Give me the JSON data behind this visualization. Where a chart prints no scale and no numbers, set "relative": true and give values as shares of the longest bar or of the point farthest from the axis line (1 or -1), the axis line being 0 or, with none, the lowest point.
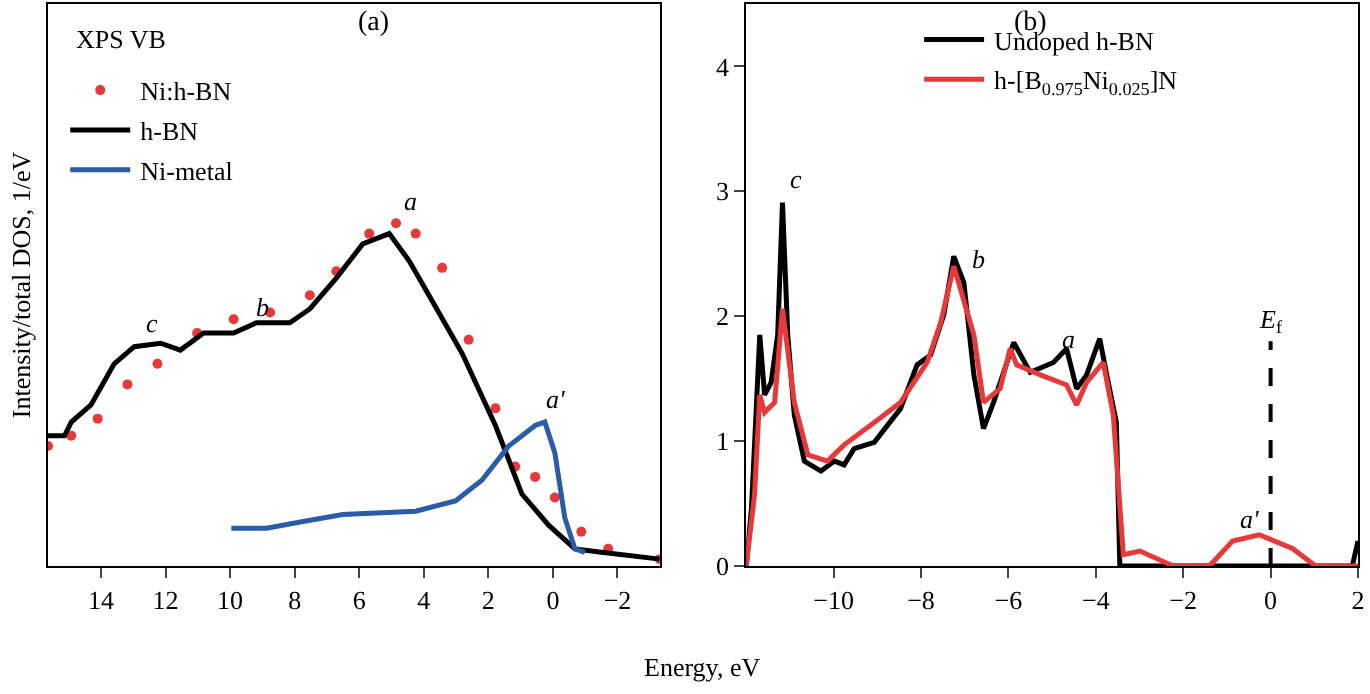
{
  "chart_data": [
    {
      "type": "line",
      "title": "(a)",
      "xlabel": "Energy, eV",
      "ylabel": "Intensity/total DOS, 1/eV",
      "relative": true,
      "xlim": [
        15.64,
        -3.31
      ],
      "xticks": [
        14,
        12,
        10,
        8,
        6,
        4,
        2,
        0,
        -2
      ],
      "legend": "top left",
      "series": [
        {
          "name": "Ni:h-BN",
          "type": "scatter",
          "marker": "circle",
          "color": "#e8393a",
          "x": [
            15.64,
            14.92,
            14.1,
            13.18,
            12.25,
            11.02,
            9.89,
            8.76,
            7.53,
            6.71,
            5.69,
            4.86,
            4.25,
            3.43,
            2.61,
            1.78,
            1.17,
            0.55,
            -0.06,
            -0.88,
            -1.71,
            -3.31
          ],
          "values": [
            0.35,
            0.38,
            0.43,
            0.53,
            0.59,
            0.68,
            0.72,
            0.74,
            0.79,
            0.86,
            0.97,
            1,
            0.97,
            0.87,
            0.66,
            0.46,
            0.29,
            0.26,
            0.2,
            0.1,
            0.05,
            0.02
          ]
        },
        {
          "name": "h-BN",
          "type": "line",
          "color": "#000000",
          "x": [
            15.64,
            15.13,
            14.92,
            14.31,
            13.59,
            12.97,
            12.15,
            11.54,
            10.82,
            9.89,
            9.18,
            8.15,
            7.53,
            6.71,
            5.89,
            5.07,
            4.45,
            3.84,
            2.81,
            1.78,
            0.96,
            0.14,
            -0.68,
            -1.5,
            -3.31
          ],
          "values": [
            0.38,
            0.38,
            0.42,
            0.47,
            0.59,
            0.64,
            0.65,
            0.63,
            0.68,
            0.68,
            0.71,
            0.71,
            0.75,
            0.84,
            0.94,
            0.97,
            0.89,
            0.79,
            0.62,
            0.41,
            0.21,
            0.12,
            0.05,
            0.04,
            0.02
          ]
        },
        {
          "name": "Ni-metal",
          "type": "line",
          "color": "#2a5caa",
          "x": [
            9.96,
            8.87,
            7.74,
            6.51,
            4.25,
            3.02,
            2.2,
            1.37,
            0.55,
            0.25,
            -0.06,
            -0.37,
            -0.68,
            -0.99
          ],
          "values": [
            0.11,
            0.11,
            0.13,
            0.15,
            0.16,
            0.19,
            0.25,
            0.35,
            0.41,
            0.42,
            0.33,
            0.14,
            0.05,
            0.04
          ]
        }
      ],
      "annotations": [
        "XPS VB",
        {
          "text": "a",
          "x": 4.86,
          "y": 1
        },
        {
          "text": "b",
          "x": 9.42,
          "y": 0.69
        },
        {
          "text": "c",
          "x": 12.87,
          "y": 0.64
        },
        {
          "text": "a'",
          "x": 0.45,
          "y": 0.42
        }
      ]
    },
    {
      "type": "line",
      "title": "(b)",
      "xlim": [
        -12,
        2
      ],
      "xticks": [
        -10,
        -8,
        -6,
        -4,
        -2,
        0,
        2
      ],
      "ylim": [
        0,
        4.5
      ],
      "yticks": [
        0,
        1,
        2,
        3,
        4
      ],
      "legend": "top",
      "series": [
        {
          "name": "Undoped h-BN",
          "color": "#000000",
          "x": [
            -12.0,
            -11.88,
            -11.69,
            -11.58,
            -11.43,
            -11.28,
            -11.17,
            -11.05,
            -10.9,
            -10.67,
            -10.29,
            -9.98,
            -9.76,
            -9.53,
            -9.07,
            -8.47,
            -8.09,
            -7.78,
            -7.48,
            -7.25,
            -7.02,
            -6.79,
            -6.57,
            -6.34,
            -5.88,
            -5.5,
            -4.97,
            -4.67,
            -4.44,
            -4.21,
            -3.91,
            -3.75,
            -3.53,
            -3.45,
            1.87,
            2.0
          ],
          "values": [
            0,
            0.46,
            1.85,
            1.37,
            1.47,
            1.85,
            2.91,
            1.85,
            1.21,
            0.84,
            0.76,
            0.84,
            0.81,
            0.94,
            0.99,
            1.26,
            1.61,
            1.69,
            2.01,
            2.48,
            2.27,
            1.53,
            1.1,
            1.31,
            1.79,
            1.55,
            1.63,
            1.74,
            1.42,
            1.53,
            1.82,
            1.53,
            1.15,
            0,
            0,
            0.2
          ]
        },
        {
          "name": "h-[B$_{0.975}$Ni$_{0.025}$]N",
          "color": "#e8393a",
          "x": [
            -12.0,
            -11.81,
            -11.69,
            -11.58,
            -11.35,
            -11.17,
            -10.9,
            -10.59,
            -10.14,
            -9.76,
            -9.07,
            -8.47,
            -7.86,
            -7.55,
            -7.25,
            -6.79,
            -6.57,
            -6.19,
            -5.96,
            -5.81,
            -5.27,
            -4.67,
            -4.44,
            -4.21,
            -3.83,
            -3.6,
            -3.37,
            -2.99,
            -2.23,
            -1.4,
            -0.87,
            -0.26,
            0.5,
            1.03,
            2.0
          ],
          "values": [
            0,
            0.57,
            1.37,
            1.23,
            1.31,
            2.06,
            1.31,
            0.89,
            0.84,
            0.97,
            1.15,
            1.31,
            1.63,
            1.95,
            2.4,
            1.85,
            1.31,
            1.42,
            1.74,
            1.61,
            1.53,
            1.45,
            1.29,
            1.47,
            1.63,
            1.21,
            0.09,
            0.12,
            0,
            0,
            0.2,
            0.25,
            0.14,
            0,
            0
          ]
        }
      ],
      "ref_lines": [
        {
          "axis": "x",
          "value": 0,
          "label": "E$_{f}$",
          "color": "#000000",
          "line_style": "dashed"
        }
      ],
      "annotations": [
        {
          "text": "a",
          "x": -4.97,
          "y": 1.63
        },
        {
          "text": "b",
          "x": -7.02,
          "y": 2.27
        },
        {
          "text": "c",
          "x": -11.17,
          "y": 2.91
        },
        {
          "text": "a'",
          "x": -0.87,
          "y": 0.2
        }
      ]
    }
  ]
}
